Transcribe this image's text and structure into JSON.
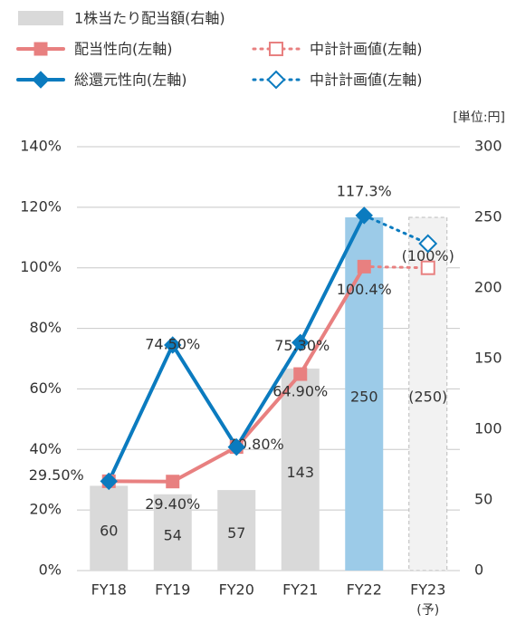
{
  "chart_data": {
    "type": "bar_line",
    "unit_label": "[単位:円]",
    "categories": [
      "FY18",
      "FY19",
      "FY20",
      "FY21",
      "FY22",
      "FY23"
    ],
    "forecast_label": "(予)",
    "ylim": [
      0,
      140
    ],
    "yticks": [
      {
        "value": 0,
        "label": "0%"
      },
      {
        "value": 20,
        "label": "20%"
      },
      {
        "value": 40,
        "label": "40%"
      },
      {
        "value": 60,
        "label": "60%"
      },
      {
        "value": 80,
        "label": "80%"
      },
      {
        "value": 100,
        "label": "100%"
      },
      {
        "value": 120,
        "label": "120%"
      },
      {
        "value": 140,
        "label": "140%"
      }
    ],
    "y2lim": [
      0,
      300
    ],
    "y2ticks": [
      0,
      50,
      100,
      150,
      200,
      250,
      300
    ],
    "series": [
      {
        "name": "1株当たり配当額(右軸)",
        "kind": "bar",
        "axis": "y2",
        "color": "#d9d9d9",
        "colors": [
          "#d9d9d9",
          "#d9d9d9",
          "#d9d9d9",
          "#d9d9d9",
          "#9ccbe8",
          "#f2f2f2"
        ],
        "values": [
          60,
          54,
          57,
          143,
          250,
          250
        ],
        "value_labels": [
          "60",
          "54",
          "57",
          "143",
          "250",
          "(250)"
        ]
      },
      {
        "name": "配当性向(左軸)",
        "kind": "line",
        "marker": "square",
        "color": "#e88080",
        "values": [
          29.5,
          29.4,
          40.8,
          64.9,
          100.4,
          null
        ],
        "value_labels": [
          null,
          "29.40%",
          "40.80%",
          "64.90%",
          "100.4%",
          null
        ]
      },
      {
        "name": "総還元性向(左軸)",
        "kind": "line",
        "marker": "diamond",
        "color": "#0b7bbf",
        "values": [
          29.5,
          74.5,
          40.8,
          75.3,
          117.3,
          null
        ],
        "value_labels": [
          "29.50%",
          "74.50%",
          null,
          "75.30%",
          "117.3%",
          null
        ]
      },
      {
        "name": "中計計画値(左軸)",
        "kind": "plan",
        "marker": "square",
        "color": "#e88080",
        "values": [
          null,
          null,
          null,
          null,
          null,
          100
        ],
        "value_labels": [
          null,
          null,
          null,
          null,
          null,
          "(100%)"
        ]
      },
      {
        "name": "中計計画値(左軸)",
        "kind": "plan",
        "marker": "diamond",
        "color": "#0b7bbf",
        "values": [
          null,
          null,
          null,
          null,
          null,
          108
        ]
      }
    ]
  }
}
